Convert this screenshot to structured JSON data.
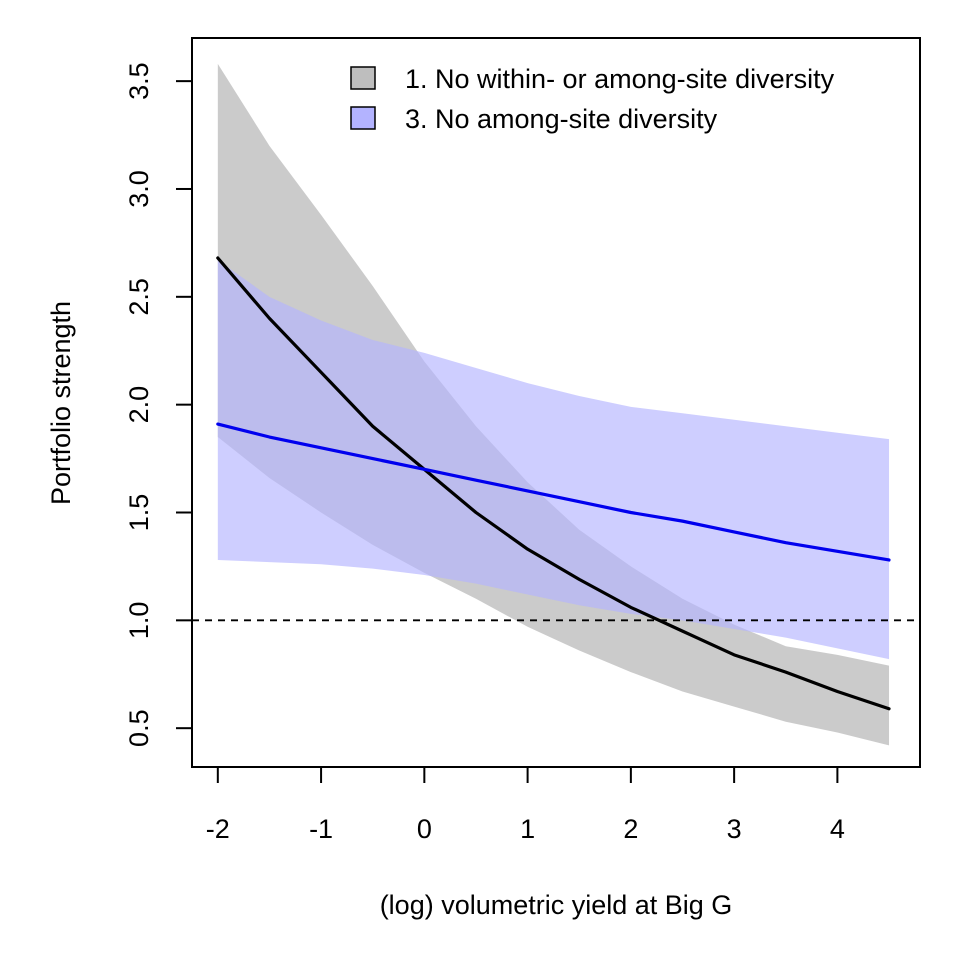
{
  "chart_data": {
    "type": "line",
    "xlabel": "(log) volumetric yield at Big G",
    "ylabel": "Portfolio strength",
    "xlim": [
      -2.25,
      4.8
    ],
    "ylim": [
      0.32,
      3.7
    ],
    "x_ticks": [
      -2,
      -1,
      0,
      1,
      2,
      3,
      4
    ],
    "y_ticks": [
      0.5,
      1.0,
      1.5,
      2.0,
      2.5,
      3.0,
      3.5
    ],
    "x_tick_labels": [
      "-2",
      "-1",
      "0",
      "1",
      "2",
      "3",
      "4"
    ],
    "y_tick_labels": [
      "0.5",
      "1.0",
      "1.5",
      "2.0",
      "2.5",
      "3.0",
      "3.5"
    ],
    "reference_line": {
      "y": 1.0,
      "style": "dashed",
      "color": "#000000"
    },
    "grid": false,
    "legend_position": "top-right",
    "series": [
      {
        "name": "1. No within- or among-site diversity",
        "line_color": "#000000",
        "band_color": "#bebebe",
        "x": [
          -2.0,
          -1.5,
          -1.0,
          -0.5,
          0.0,
          0.5,
          1.0,
          1.5,
          2.0,
          2.5,
          3.0,
          3.5,
          4.0,
          4.5
        ],
        "y": [
          2.68,
          2.4,
          2.15,
          1.9,
          1.7,
          1.5,
          1.33,
          1.19,
          1.06,
          0.95,
          0.84,
          0.76,
          0.67,
          0.59
        ],
        "lower": [
          1.85,
          1.66,
          1.5,
          1.35,
          1.22,
          1.1,
          0.97,
          0.86,
          0.76,
          0.67,
          0.6,
          0.53,
          0.48,
          0.42
        ],
        "upper": [
          3.58,
          3.2,
          2.88,
          2.55,
          2.2,
          1.9,
          1.64,
          1.42,
          1.25,
          1.1,
          0.98,
          0.88,
          0.84,
          0.79
        ]
      },
      {
        "name": "3. No among-site diversity",
        "line_color": "#0000ee",
        "band_color": "#b3b3ff",
        "x": [
          -2.0,
          -1.5,
          -1.0,
          -0.5,
          0.0,
          0.5,
          1.0,
          1.5,
          2.0,
          2.5,
          3.0,
          3.5,
          4.0,
          4.5
        ],
        "y": [
          1.91,
          1.85,
          1.8,
          1.75,
          1.7,
          1.65,
          1.6,
          1.55,
          1.5,
          1.46,
          1.41,
          1.36,
          1.32,
          1.28
        ],
        "lower": [
          1.28,
          1.27,
          1.26,
          1.24,
          1.21,
          1.17,
          1.12,
          1.07,
          1.03,
          1.0,
          0.96,
          0.92,
          0.87,
          0.82
        ],
        "upper": [
          2.67,
          2.5,
          2.39,
          2.3,
          2.24,
          2.17,
          2.1,
          2.04,
          1.99,
          1.96,
          1.93,
          1.9,
          1.87,
          1.84
        ]
      }
    ]
  }
}
